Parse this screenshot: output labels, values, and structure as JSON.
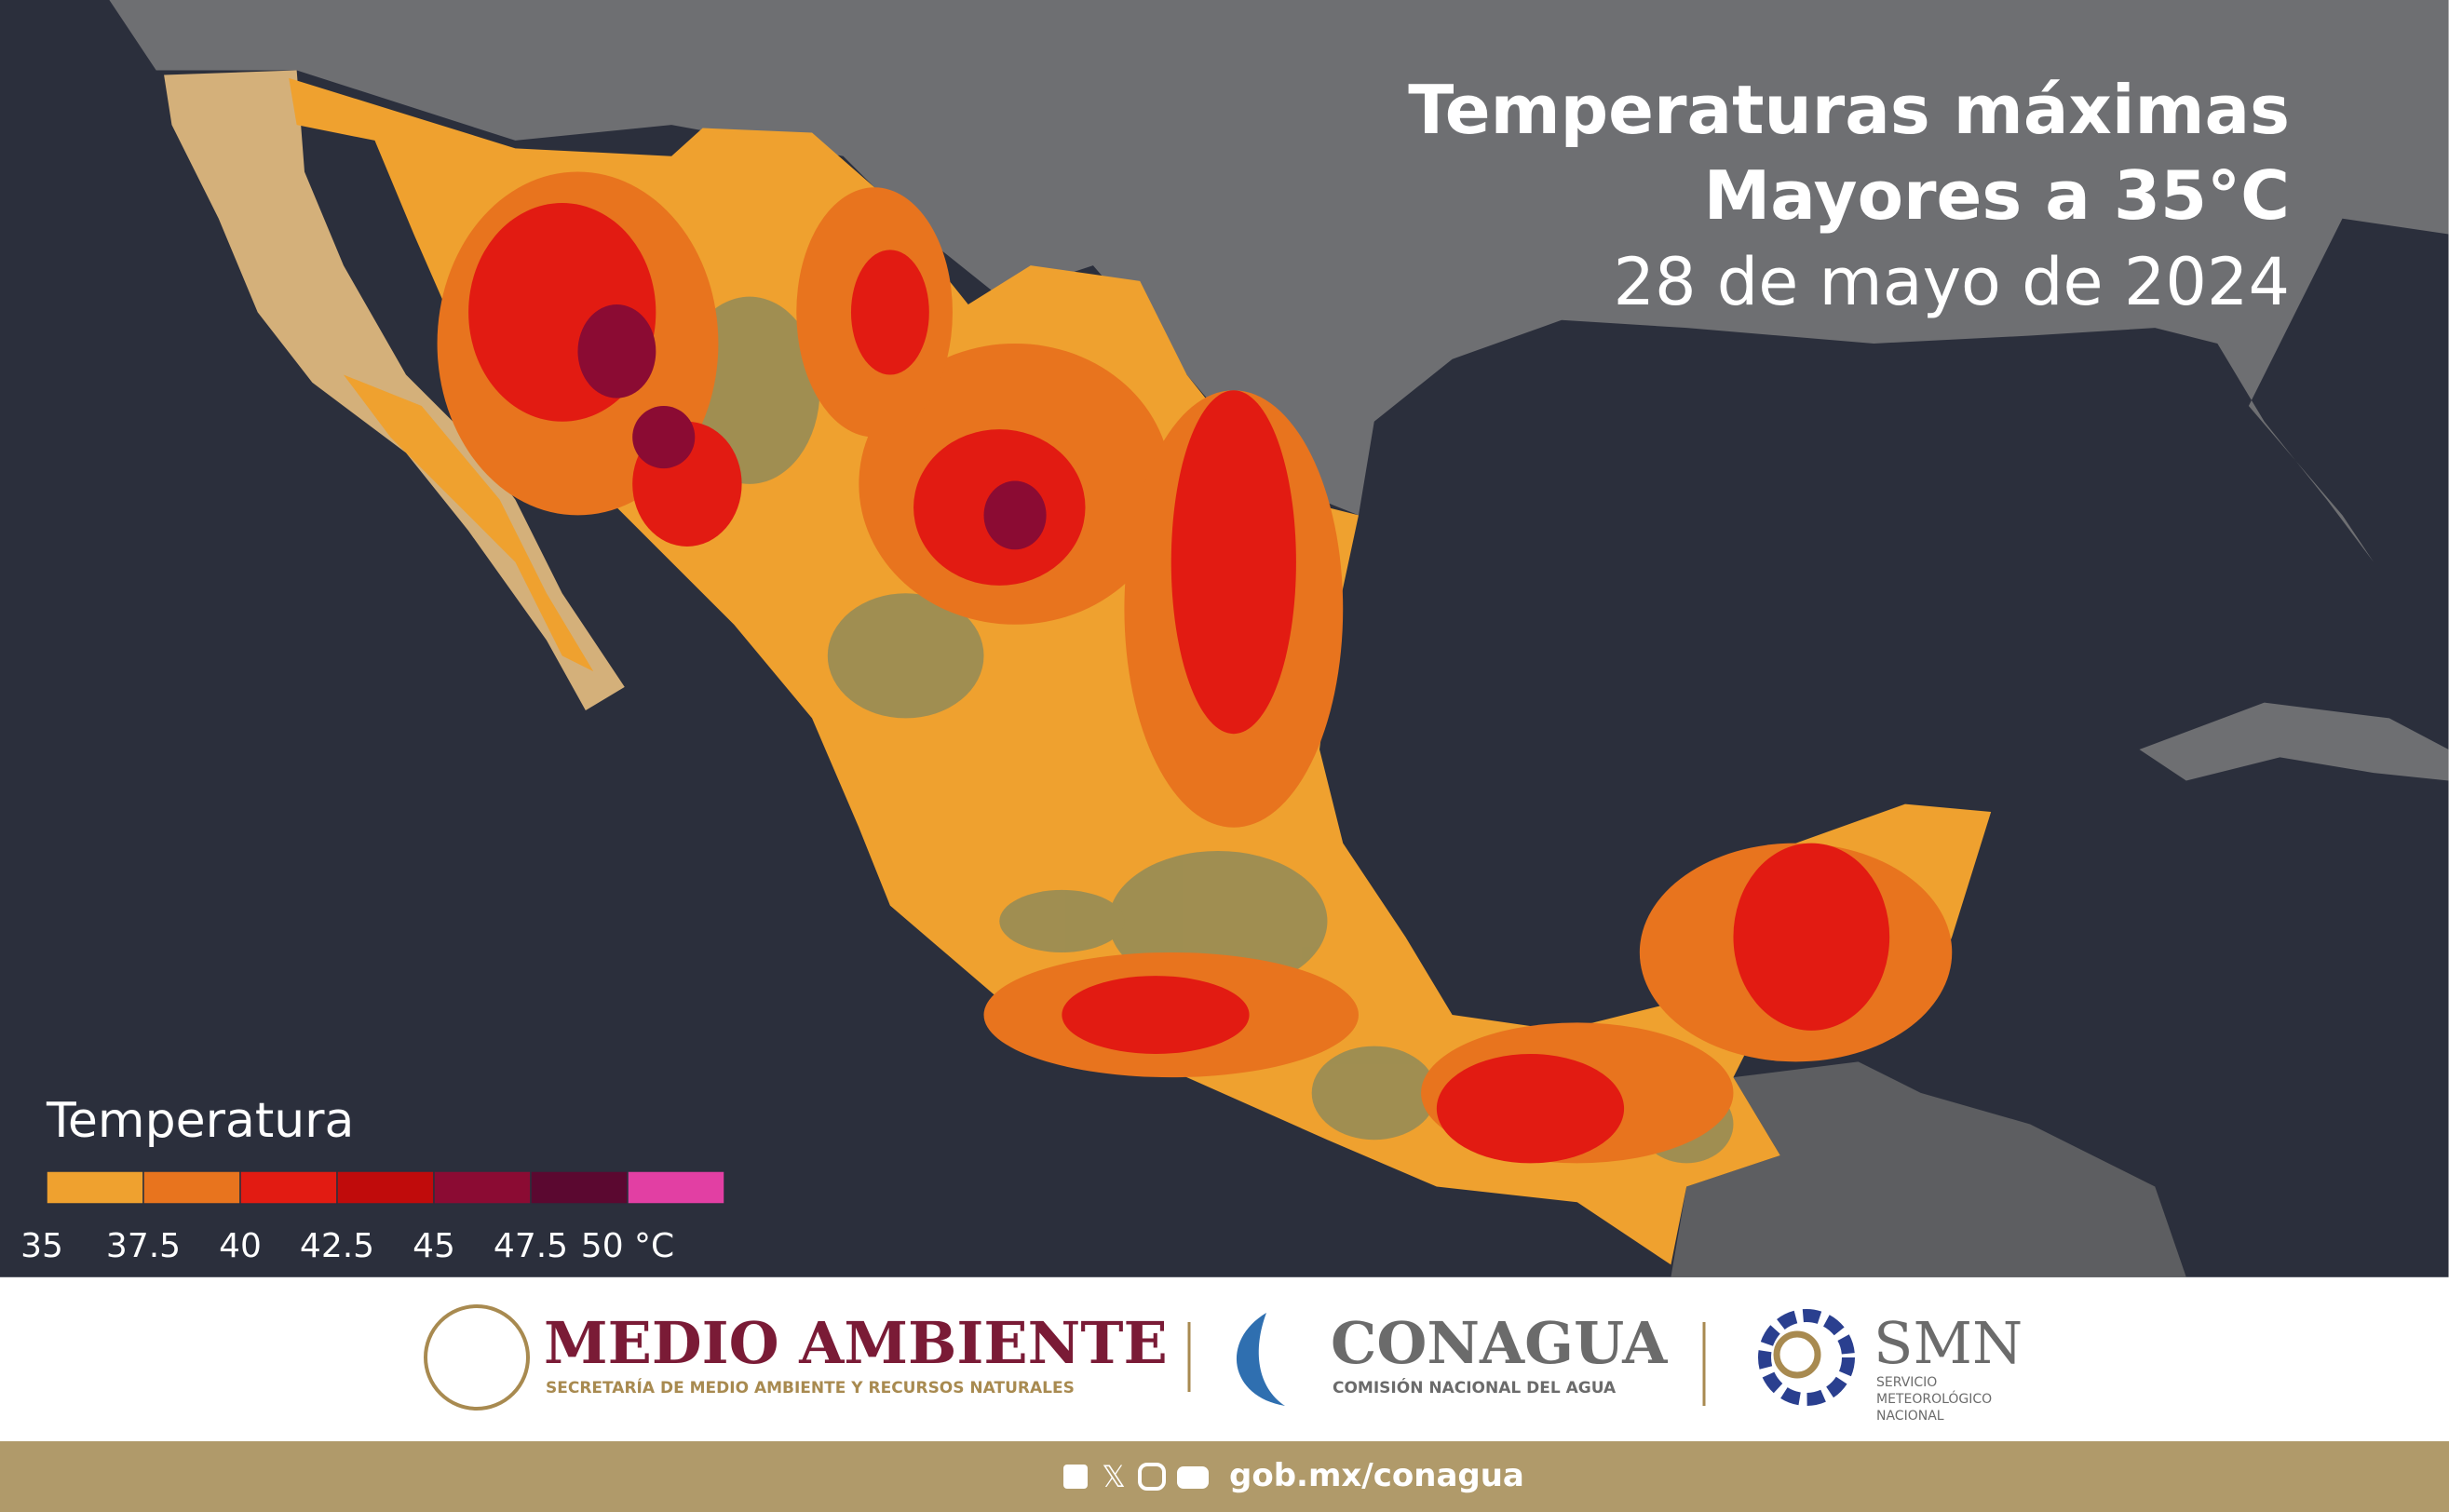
{
  "header": {
    "title_line1": "Temperaturas máximas",
    "title_line2": "Mayores a 35°C",
    "date": "28 de mayo de 2024"
  },
  "legend": {
    "title": "Temperatura",
    "colors": [
      "#efa12f",
      "#e8741e",
      "#e21b12",
      "#c00b0b",
      "#8b0b33",
      "#5b0830",
      "#e23fa3"
    ],
    "ticks": [
      35,
      37.5,
      40,
      42.5,
      45,
      47.5,
      {
        "value": 50,
        "label": "50 °C"
      }
    ]
  },
  "footer": {
    "semarnat": {
      "name": "MEDIO AMBIENTE",
      "subtitle": "SECRETARÍA DE MEDIO AMBIENTE Y RECURSOS NATURALES"
    },
    "conagua": {
      "name": "CONAGUA",
      "subtitle": "COMISIÓN NACIONAL DEL AGUA"
    },
    "smn": {
      "name": "SMN",
      "subtitle": [
        "SERVICIO",
        "METEOROLÓGICO",
        "NACIONAL"
      ]
    },
    "url": "gob.mx/conagua"
  }
}
